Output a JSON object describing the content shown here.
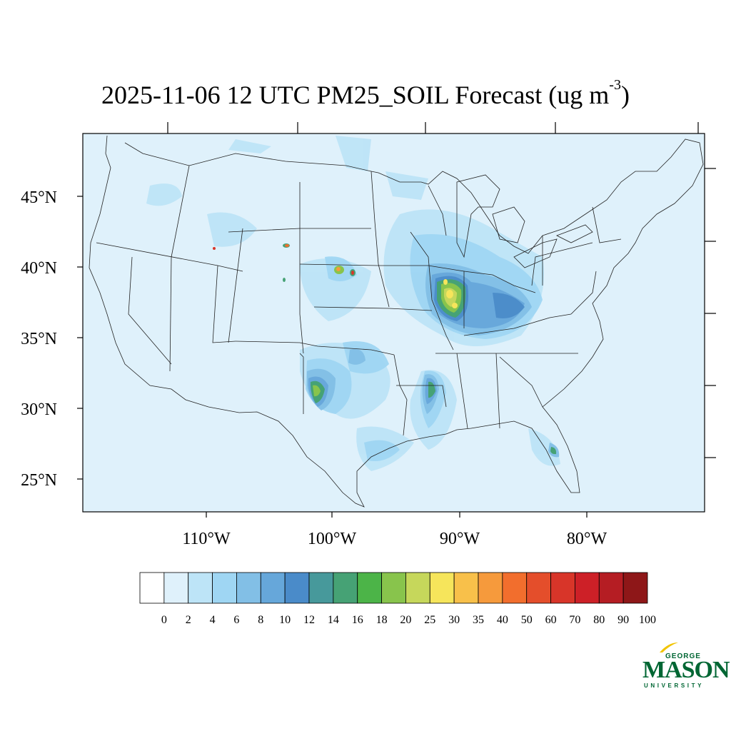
{
  "title": {
    "main": "2025-11-06 12 UTC PM25_SOIL Forecast (ug m",
    "sup": "-3",
    "close": ")"
  },
  "map": {
    "lat_labels": [
      "45°N",
      "40°N",
      "35°N",
      "30°N",
      "25°N"
    ],
    "lon_labels": [
      "110°W",
      "100°W",
      "90°W",
      "80°W"
    ],
    "background_color": "#dff1fb",
    "lines": "US state boundaries and coastlines"
  },
  "colorbar": {
    "labels": [
      "0",
      "2",
      "4",
      "6",
      "8",
      "10",
      "12",
      "14",
      "16",
      "18",
      "20",
      "25",
      "30",
      "35",
      "40",
      "50",
      "60",
      "70",
      "80",
      "90",
      "100"
    ],
    "colors": [
      "#ffffff",
      "#dff1fb",
      "#bde4f7",
      "#9fd6f3",
      "#82bfe6",
      "#66a7da",
      "#4a8bc9",
      "#47999b",
      "#46a275",
      "#4cb448",
      "#88c44c",
      "#c6d75b",
      "#f6e55b",
      "#f8c04a",
      "#f69a3c",
      "#f26e2d",
      "#e44e2b",
      "#d83529",
      "#cd2027",
      "#b51d23",
      "#8e1718"
    ]
  },
  "logo": {
    "top": "GEORGE",
    "main": "MASON",
    "bottom": "UNIVERSITY",
    "color": "#006633",
    "accent": "#f1c400"
  }
}
